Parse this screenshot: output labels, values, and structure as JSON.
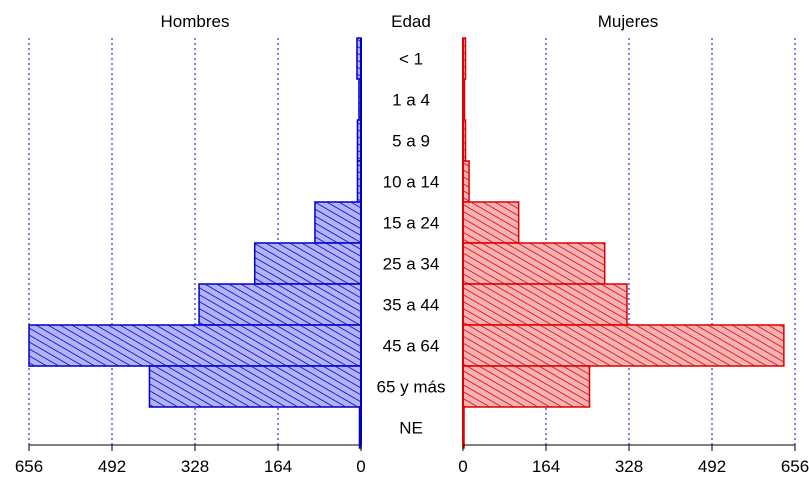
{
  "chart_data": {
    "type": "bar",
    "orientation": "horizontal-population-pyramid",
    "headers": {
      "left": "Hombres",
      "center": "Edad",
      "right": "Mujeres"
    },
    "categories": [
      "< 1",
      "1 a 4",
      "5 a 9",
      "10 a 14",
      "15 a 24",
      "25 a 34",
      "35 a 44",
      "45 a 64",
      "65 y más",
      "NE"
    ],
    "series": [
      {
        "name": "Hombres",
        "side": "left",
        "color": "#0000cc",
        "fill": "#a9a9f5",
        "values": [
          8,
          4,
          7,
          7,
          91,
          210,
          320,
          656,
          418,
          3
        ]
      },
      {
        "name": "Mujeres",
        "side": "right",
        "color": "#dd0000",
        "fill": "#f5a9a9",
        "values": [
          5,
          3,
          5,
          12,
          110,
          280,
          324,
          634,
          250,
          2
        ]
      }
    ],
    "xlim": [
      0,
      656
    ],
    "left_ticks": [
      "656",
      "492",
      "328",
      "164",
      "0"
    ],
    "right_ticks": [
      "0",
      "164",
      "328",
      "492",
      "656"
    ],
    "tick_values": [
      0,
      164,
      328,
      492,
      656
    ],
    "grid": true
  }
}
